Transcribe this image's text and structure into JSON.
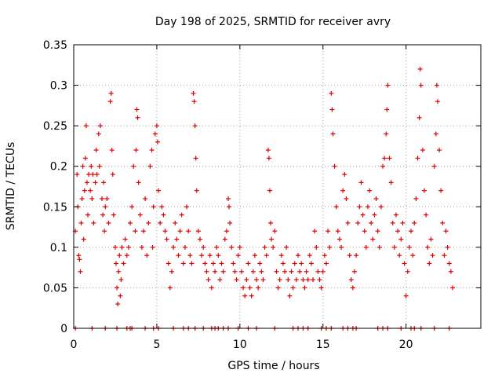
{
  "chart_data": {
    "type": "scatter",
    "title": "Day 198 of 2025, SRMTID for receiver avry",
    "xlabel": "GPS time / hours",
    "ylabel": "SRMTID / TECUs",
    "xlim": [
      0,
      24.5
    ],
    "ylim": [
      0,
      0.35
    ],
    "xticks": [
      0,
      5,
      10,
      15,
      20
    ],
    "xtick_labels": [
      "0",
      "5",
      "10",
      "15",
      "20"
    ],
    "yticks": [
      0,
      0.05,
      0.1,
      0.15,
      0.2,
      0.25,
      0.3,
      0.35
    ],
    "ytick_labels": [
      "0",
      "0.05",
      "0.1",
      "0.15",
      "0.2",
      "0.25",
      "0.3",
      "0.35"
    ],
    "grid": true,
    "marker": "+",
    "color": "#e00000",
    "series": [
      {
        "name": "avry",
        "points": [
          [
            0.1,
            0.12
          ],
          [
            0.2,
            0.19
          ],
          [
            0.25,
            0.15
          ],
          [
            0.3,
            0.09
          ],
          [
            0.35,
            0.085
          ],
          [
            0.4,
            0.07
          ],
          [
            0.45,
            0.13
          ],
          [
            0.5,
            0.16
          ],
          [
            0.55,
            0.2
          ],
          [
            0.6,
            0.11
          ],
          [
            0.65,
            0.17
          ],
          [
            0.7,
            0.21
          ],
          [
            0.75,
            0.25
          ],
          [
            0.8,
            0.18
          ],
          [
            0.85,
            0.14
          ],
          [
            0.9,
            0.19
          ],
          [
            1.0,
            0.17
          ],
          [
            1.05,
            0.2
          ],
          [
            1.1,
            0.16
          ],
          [
            1.15,
            0.19
          ],
          [
            1.2,
            0.13
          ],
          [
            1.3,
            0.18
          ],
          [
            1.35,
            0.22
          ],
          [
            1.4,
            0.19
          ],
          [
            1.5,
            0.24
          ],
          [
            1.55,
            0.2
          ],
          [
            1.6,
            0.25
          ],
          [
            1.7,
            0.16
          ],
          [
            1.75,
            0.14
          ],
          [
            1.8,
            0.18
          ],
          [
            1.85,
            0.12
          ],
          [
            1.9,
            0.15
          ],
          [
            2.0,
            0.16
          ],
          [
            2.1,
            0.13
          ],
          [
            2.2,
            0.28
          ],
          [
            2.25,
            0.29
          ],
          [
            2.3,
            0.22
          ],
          [
            2.35,
            0.19
          ],
          [
            2.4,
            0.14
          ],
          [
            2.5,
            0.1
          ],
          [
            2.55,
            0.08
          ],
          [
            2.6,
            0.05
          ],
          [
            2.65,
            0.03
          ],
          [
            2.7,
            0.07
          ],
          [
            2.75,
            0.09
          ],
          [
            2.8,
            0.04
          ],
          [
            2.85,
            0.06
          ],
          [
            2.9,
            0.1
          ],
          [
            3.0,
            0.08
          ],
          [
            3.1,
            0.11
          ],
          [
            3.2,
            0.09
          ],
          [
            3.3,
            0.1
          ],
          [
            3.4,
            0.13
          ],
          [
            3.5,
            0.15
          ],
          [
            3.6,
            0.2
          ],
          [
            3.7,
            0.12
          ],
          [
            3.75,
            0.22
          ],
          [
            3.8,
            0.27
          ],
          [
            3.85,
            0.26
          ],
          [
            3.9,
            0.18
          ],
          [
            4.0,
            0.14
          ],
          [
            4.1,
            0.1
          ],
          [
            4.2,
            0.12
          ],
          [
            4.3,
            0.16
          ],
          [
            4.4,
            0.09
          ],
          [
            4.5,
            0.13
          ],
          [
            4.6,
            0.2
          ],
          [
            4.7,
            0.22
          ],
          [
            4.75,
            0.1
          ],
          [
            4.8,
            0.15
          ],
          [
            4.9,
            0.24
          ],
          [
            5.0,
            0.25
          ],
          [
            5.05,
            0.23
          ],
          [
            5.1,
            0.17
          ],
          [
            5.2,
            0.13
          ],
          [
            5.3,
            0.15
          ],
          [
            5.4,
            0.14
          ],
          [
            5.5,
            0.12
          ],
          [
            5.6,
            0.11
          ],
          [
            5.7,
            0.08
          ],
          [
            5.8,
            0.05
          ],
          [
            5.9,
            0.07
          ],
          [
            6.0,
            0.1
          ],
          [
            6.1,
            0.13
          ],
          [
            6.2,
            0.11
          ],
          [
            6.3,
            0.09
          ],
          [
            6.4,
            0.12
          ],
          [
            6.5,
            0.14
          ],
          [
            6.6,
            0.08
          ],
          [
            6.7,
            0.1
          ],
          [
            6.8,
            0.15
          ],
          [
            6.9,
            0.12
          ],
          [
            7.0,
            0.09
          ],
          [
            7.1,
            0.08
          ],
          [
            7.2,
            0.29
          ],
          [
            7.25,
            0.28
          ],
          [
            7.3,
            0.25
          ],
          [
            7.35,
            0.21
          ],
          [
            7.4,
            0.17
          ],
          [
            7.5,
            0.12
          ],
          [
            7.6,
            0.11
          ],
          [
            7.7,
            0.09
          ],
          [
            7.8,
            0.1
          ],
          [
            7.9,
            0.08
          ],
          [
            8.0,
            0.07
          ],
          [
            8.1,
            0.06
          ],
          [
            8.2,
            0.09
          ],
          [
            8.3,
            0.05
          ],
          [
            8.4,
            0.08
          ],
          [
            8.5,
            0.07
          ],
          [
            8.6,
            0.1
          ],
          [
            8.7,
            0.09
          ],
          [
            8.8,
            0.06
          ],
          [
            8.9,
            0.08
          ],
          [
            9.0,
            0.07
          ],
          [
            9.1,
            0.11
          ],
          [
            9.2,
            0.12
          ],
          [
            9.3,
            0.16
          ],
          [
            9.35,
            0.15
          ],
          [
            9.4,
            0.13
          ],
          [
            9.5,
            0.1
          ],
          [
            9.6,
            0.08
          ],
          [
            9.7,
            0.07
          ],
          [
            9.8,
            0.06
          ],
          [
            9.9,
            0.09
          ],
          [
            10.0,
            0.1
          ],
          [
            10.1,
            0.07
          ],
          [
            10.2,
            0.05
          ],
          [
            10.3,
            0.04
          ],
          [
            10.4,
            0.06
          ],
          [
            10.5,
            0.08
          ],
          [
            10.6,
            0.05
          ],
          [
            10.7,
            0.04
          ],
          [
            10.8,
            0.07
          ],
          [
            10.9,
            0.09
          ],
          [
            11.0,
            0.06
          ],
          [
            11.1,
            0.05
          ],
          [
            11.2,
            0.08
          ],
          [
            11.3,
            0.07
          ],
          [
            11.4,
            0.06
          ],
          [
            11.5,
            0.1
          ],
          [
            11.6,
            0.09
          ],
          [
            11.7,
            0.22
          ],
          [
            11.75,
            0.21
          ],
          [
            11.8,
            0.17
          ],
          [
            11.85,
            0.13
          ],
          [
            11.9,
            0.11
          ],
          [
            12.0,
            0.1
          ],
          [
            12.1,
            0.12
          ],
          [
            12.2,
            0.07
          ],
          [
            12.3,
            0.05
          ],
          [
            12.4,
            0.06
          ],
          [
            12.5,
            0.09
          ],
          [
            12.6,
            0.08
          ],
          [
            12.7,
            0.07
          ],
          [
            12.8,
            0.1
          ],
          [
            12.9,
            0.06
          ],
          [
            13.0,
            0.04
          ],
          [
            13.1,
            0.07
          ],
          [
            13.2,
            0.05
          ],
          [
            13.3,
            0.08
          ],
          [
            13.4,
            0.06
          ],
          [
            13.5,
            0.09
          ],
          [
            13.6,
            0.07
          ],
          [
            13.7,
            0.08
          ],
          [
            13.8,
            0.06
          ],
          [
            13.9,
            0.05
          ],
          [
            14.0,
            0.07
          ],
          [
            14.1,
            0.06
          ],
          [
            14.2,
            0.09
          ],
          [
            14.3,
            0.08
          ],
          [
            14.4,
            0.06
          ],
          [
            14.5,
            0.12
          ],
          [
            14.6,
            0.1
          ],
          [
            14.7,
            0.07
          ],
          [
            14.8,
            0.06
          ],
          [
            14.9,
            0.05
          ],
          [
            15.0,
            0.07
          ],
          [
            15.1,
            0.09
          ],
          [
            15.2,
            0.08
          ],
          [
            15.3,
            0.12
          ],
          [
            15.4,
            0.1
          ],
          [
            15.5,
            0.29
          ],
          [
            15.55,
            0.27
          ],
          [
            15.6,
            0.24
          ],
          [
            15.7,
            0.2
          ],
          [
            15.8,
            0.15
          ],
          [
            15.9,
            0.12
          ],
          [
            16.0,
            0.11
          ],
          [
            16.1,
            0.1
          ],
          [
            16.2,
            0.17
          ],
          [
            16.3,
            0.19
          ],
          [
            16.4,
            0.16
          ],
          [
            16.5,
            0.13
          ],
          [
            16.6,
            0.09
          ],
          [
            16.7,
            0.06
          ],
          [
            16.8,
            0.05
          ],
          [
            16.9,
            0.07
          ],
          [
            17.0,
            0.09
          ],
          [
            17.1,
            0.13
          ],
          [
            17.2,
            0.15
          ],
          [
            17.3,
            0.18
          ],
          [
            17.4,
            0.14
          ],
          [
            17.5,
            0.12
          ],
          [
            17.6,
            0.1
          ],
          [
            17.7,
            0.15
          ],
          [
            17.8,
            0.17
          ],
          [
            17.9,
            0.13
          ],
          [
            18.0,
            0.11
          ],
          [
            18.1,
            0.14
          ],
          [
            18.2,
            0.16
          ],
          [
            18.3,
            0.12
          ],
          [
            18.4,
            0.1
          ],
          [
            18.5,
            0.15
          ],
          [
            18.6,
            0.2
          ],
          [
            18.7,
            0.21
          ],
          [
            18.8,
            0.24
          ],
          [
            18.85,
            0.27
          ],
          [
            18.9,
            0.3
          ],
          [
            19.0,
            0.21
          ],
          [
            19.1,
            0.18
          ],
          [
            19.2,
            0.13
          ],
          [
            19.3,
            0.1
          ],
          [
            19.4,
            0.14
          ],
          [
            19.5,
            0.12
          ],
          [
            19.6,
            0.09
          ],
          [
            19.7,
            0.11
          ],
          [
            19.8,
            0.13
          ],
          [
            19.9,
            0.08
          ],
          [
            20.0,
            0.04
          ],
          [
            20.1,
            0.07
          ],
          [
            20.2,
            0.1
          ],
          [
            20.3,
            0.12
          ],
          [
            20.4,
            0.09
          ],
          [
            20.5,
            0.13
          ],
          [
            20.6,
            0.16
          ],
          [
            20.7,
            0.21
          ],
          [
            20.8,
            0.26
          ],
          [
            20.85,
            0.32
          ],
          [
            20.9,
            0.3
          ],
          [
            21.0,
            0.22
          ],
          [
            21.1,
            0.17
          ],
          [
            21.2,
            0.14
          ],
          [
            21.3,
            0.1
          ],
          [
            21.4,
            0.08
          ],
          [
            21.5,
            0.11
          ],
          [
            21.6,
            0.09
          ],
          [
            21.7,
            0.2
          ],
          [
            21.8,
            0.24
          ],
          [
            21.85,
            0.3
          ],
          [
            21.9,
            0.28
          ],
          [
            22.0,
            0.22
          ],
          [
            22.1,
            0.17
          ],
          [
            22.2,
            0.13
          ],
          [
            22.3,
            0.09
          ],
          [
            22.4,
            0.12
          ],
          [
            22.5,
            0.1
          ],
          [
            22.6,
            0.08
          ],
          [
            22.7,
            0.07
          ],
          [
            22.8,
            0.05
          ]
        ]
      }
    ],
    "zero_points_x": [
      0.1,
      1.1,
      1.9,
      2.6,
      3.2,
      3.4,
      3.5,
      4.3,
      4.8,
      5.1,
      6.0,
      6.6,
      6.9,
      7.3,
      7.8,
      8.3,
      8.5,
      8.7,
      9.0,
      9.3,
      9.9,
      10.5,
      11.0,
      12.1,
      13.2,
      13.5,
      13.8,
      14.1,
      14.9,
      15.2,
      15.5,
      16.2,
      16.5,
      16.8,
      17.0,
      18.3,
      18.6,
      18.9,
      19.7,
      20.3,
      20.5,
      20.9,
      21.7,
      22.6
    ]
  }
}
